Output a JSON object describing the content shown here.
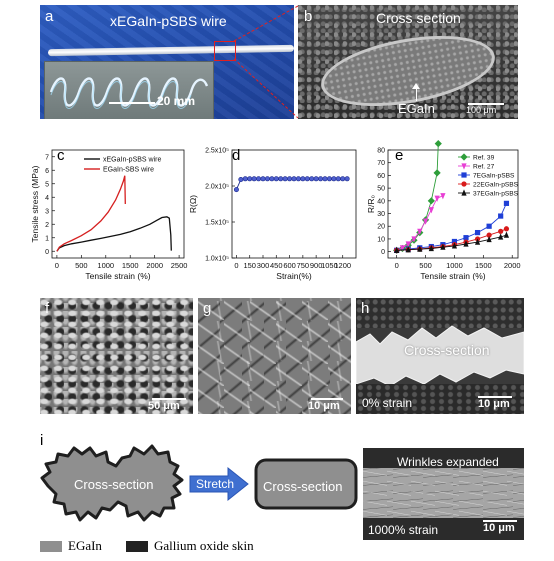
{
  "panel_a": {
    "letter": "a",
    "title": "xEGaIn-pSBS wire",
    "scale": "20 mm",
    "colors": {
      "bg_blue": "#2a56b8",
      "inset": "#7d8a8a"
    }
  },
  "panel_b": {
    "letter": "b",
    "title": "Cross section",
    "arrow_label": "EGaIn",
    "scale": "100 μm"
  },
  "panel_f": {
    "letter": "f",
    "scale": "50 μm"
  },
  "panel_g": {
    "letter": "g",
    "scale": "10 μm"
  },
  "panel_h": {
    "letter": "h",
    "label": "Cross-section",
    "strain": "0% strain",
    "scale": "10 μm"
  },
  "panel_i": {
    "letter": "i",
    "left_shape_label": "Cross-section",
    "arrow_label": "Stretch",
    "right_shape_label": "Cross-section",
    "sem_label": "Wrinkles expanded",
    "sem_strain": "1000% strain",
    "sem_scale": "10 μm",
    "legend": [
      {
        "label": "EGaIn",
        "color": "#8f8f8f"
      },
      {
        "label": "Gallium oxide skin",
        "color": "#222222"
      }
    ]
  },
  "chart_data": [
    {
      "panel": "c",
      "type": "line",
      "xlabel": "Tensile strain (%)",
      "ylabel": "Tensile stress (MPa)",
      "xlim": [
        -100,
        2600
      ],
      "ylim": [
        -0.5,
        7.5
      ],
      "xticks": [
        0,
        500,
        1000,
        1500,
        2000,
        2500
      ],
      "yticks": [
        0,
        1,
        2,
        3,
        4,
        5,
        6,
        7
      ],
      "legend_position": "top-right",
      "series": [
        {
          "name": "xEGaIn-pSBS wire",
          "color": "#111111",
          "x": [
            0,
            50,
            150,
            300,
            500,
            700,
            900,
            1100,
            1300,
            1500,
            1700,
            1900,
            2050,
            2150,
            2250,
            2300,
            2330,
            2340
          ],
          "y": [
            0,
            0.25,
            0.42,
            0.55,
            0.68,
            0.82,
            0.95,
            1.1,
            1.25,
            1.45,
            1.7,
            2.0,
            2.3,
            2.5,
            2.55,
            2.45,
            1.2,
            0.05
          ]
        },
        {
          "name": "EGaIn-SBS wire",
          "color": "#d62020",
          "x": [
            0,
            50,
            150,
            300,
            500,
            700,
            900,
            1050,
            1200,
            1300,
            1360,
            1390,
            1400
          ],
          "y": [
            0,
            0.3,
            0.55,
            0.8,
            1.15,
            1.6,
            2.25,
            2.9,
            3.8,
            4.6,
            5.2,
            5.6,
            3.5
          ]
        }
      ]
    },
    {
      "panel": "d",
      "type": "line",
      "xlabel": "Strain(%)",
      "ylabel": "R(Ω)",
      "xlim": [
        -50,
        1350
      ],
      "ylim": [
        1.0,
        2.5
      ],
      "xticks": [
        0,
        150,
        300,
        450,
        600,
        750,
        900,
        1050,
        1200
      ],
      "yticks": [
        1.0,
        1.5,
        2.0,
        2.5
      ],
      "yticklabels": [
        "1.0x10⁵",
        "1.5x10⁵",
        "2.0x10⁵",
        "2.5x10⁵"
      ],
      "series": [
        {
          "name": "",
          "color": "#1b2a8c",
          "x": [
            0,
            50,
            100,
            150,
            200,
            250,
            300,
            350,
            400,
            450,
            500,
            550,
            600,
            650,
            700,
            750,
            800,
            850,
            900,
            950,
            1000,
            1050,
            1100,
            1150,
            1200,
            1250
          ],
          "y": [
            1.95,
            2.09,
            2.1,
            2.1,
            2.1,
            2.1,
            2.1,
            2.1,
            2.1,
            2.1,
            2.1,
            2.1,
            2.1,
            2.1,
            2.1,
            2.1,
            2.1,
            2.1,
            2.1,
            2.1,
            2.1,
            2.1,
            2.1,
            2.1,
            2.1,
            2.1
          ]
        }
      ]
    },
    {
      "panel": "e",
      "type": "line",
      "xlabel": "Tensile strain (%)",
      "ylabel": "R/R₀",
      "xlim": [
        -150,
        2100
      ],
      "ylim": [
        -5,
        80
      ],
      "xticks": [
        0,
        500,
        1000,
        1500,
        2000
      ],
      "yticks": [
        0,
        10,
        20,
        30,
        40,
        50,
        60,
        70,
        80
      ],
      "legend_position": "top-right",
      "series": [
        {
          "name": "Ref. 39",
          "color": "#2e9e3a",
          "marker": "diamond",
          "x": [
            0,
            100,
            200,
            300,
            400,
            500,
            600,
            700,
            720
          ],
          "y": [
            1,
            2.5,
            5,
            9,
            15,
            25,
            40,
            62,
            85
          ]
        },
        {
          "name": "Ref. 27",
          "color": "#e83fd4",
          "marker": "triangle-down",
          "x": [
            0,
            100,
            200,
            300,
            400,
            500,
            600,
            700,
            800
          ],
          "y": [
            1,
            3,
            6,
            10,
            16,
            24,
            33,
            42,
            44
          ]
        },
        {
          "name": "7EGaIn-pSBS",
          "color": "#1f3fd6",
          "marker": "square",
          "x": [
            0,
            200,
            400,
            600,
            800,
            1000,
            1200,
            1400,
            1600,
            1800,
            1900
          ],
          "y": [
            1,
            2,
            3,
            4,
            5.5,
            8,
            11,
            15,
            20,
            28,
            38
          ]
        },
        {
          "name": "22EGaIn-pSBS",
          "color": "#d81a1a",
          "marker": "circle",
          "x": [
            0,
            200,
            400,
            600,
            800,
            1000,
            1200,
            1400,
            1600,
            1800,
            1900
          ],
          "y": [
            1,
            1.5,
            2,
            3,
            4,
            5.5,
            7.5,
            10,
            13,
            16,
            18
          ]
        },
        {
          "name": "37EGaIn-pSBS",
          "color": "#111111",
          "marker": "triangle",
          "x": [
            0,
            200,
            400,
            600,
            800,
            1000,
            1200,
            1400,
            1600,
            1800,
            1900
          ],
          "y": [
            1,
            1.5,
            2,
            2.5,
            3.5,
            4.5,
            6,
            7.5,
            9.5,
            11.5,
            13
          ]
        }
      ]
    }
  ]
}
